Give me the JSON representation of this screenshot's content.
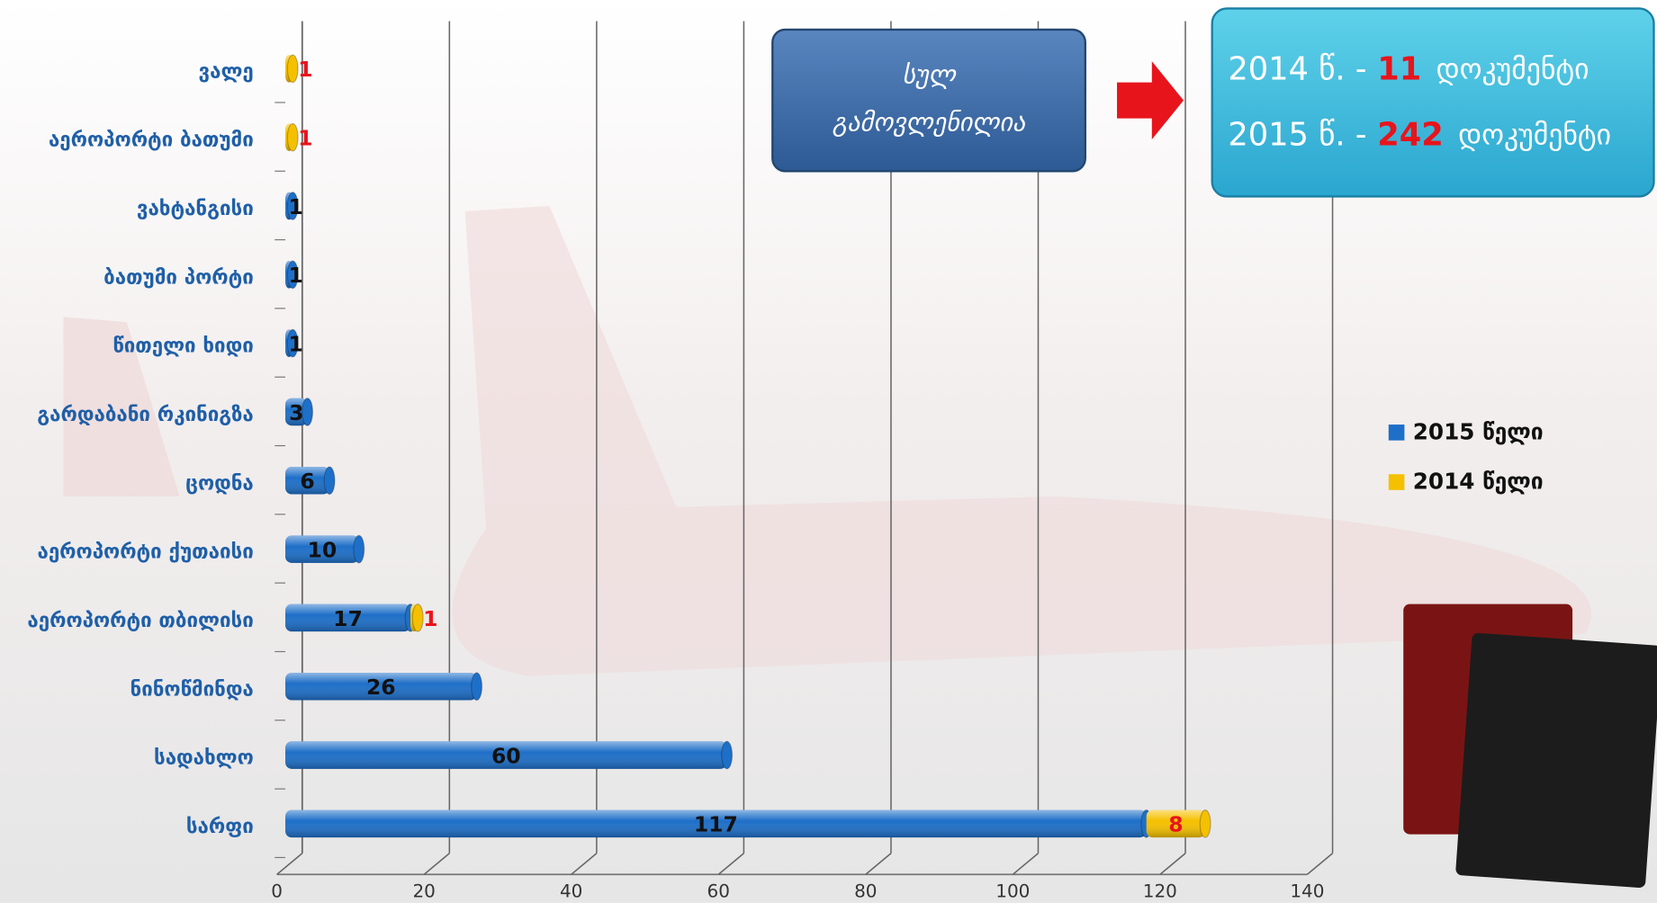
{
  "chart_data": {
    "type": "bar",
    "orientation": "horizontal",
    "stacked": true,
    "categories": [
      "ვალე",
      "აეროპორტი ბათუმი",
      "ვახტანგისი",
      "ბათუმი პორტი",
      "წითელი ხიდი",
      "გარდაბანი რკინიგზა",
      "ცოდნა",
      "აეროპორტი ქუთაისი",
      "აეროპორტი თბილისი",
      "ნინოწმინდა",
      "სადახლო",
      "სარფი"
    ],
    "series": [
      {
        "name": "2015 წელი",
        "color": "#1e6fc8",
        "label_color": "#111111",
        "values": [
          null,
          null,
          1,
          1,
          1,
          3,
          6,
          10,
          17,
          26,
          60,
          117
        ]
      },
      {
        "name": "2014 წელი",
        "color": "#f5c000",
        "label_color": "#e8141c",
        "values": [
          1,
          1,
          null,
          null,
          null,
          null,
          null,
          null,
          1,
          null,
          null,
          8
        ]
      }
    ],
    "xlim": [
      0,
      140
    ],
    "xticks": [
      0,
      20,
      40,
      60,
      80,
      100,
      120,
      140
    ],
    "grid": true,
    "legend": "right",
    "total_box": {
      "lines": [
        "სულ",
        "გამოვლენილია"
      ]
    },
    "summary": [
      {
        "year": "2014 წ. -",
        "count": 11,
        "unit": "დოკუმენტი"
      },
      {
        "year": "2015 წ. -",
        "count": 242,
        "unit": "დოკუმენტი"
      }
    ]
  }
}
